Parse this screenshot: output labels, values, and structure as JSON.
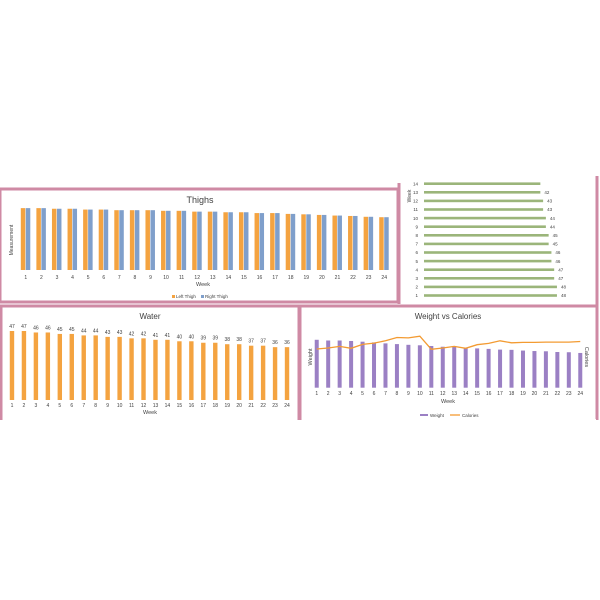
{
  "colors": {
    "border": "#cf8aa4",
    "orange": "#f4a340",
    "blue": "#7f9fcb",
    "green": "#9bb57a",
    "purple": "#9b80c4",
    "line": "#f39b32"
  },
  "chart_data": [
    {
      "type": "bar",
      "title": "Thighs",
      "xlabel": "Week",
      "ylabel": "Measurement",
      "categories": [
        "1",
        "2",
        "3",
        "4",
        "5",
        "6",
        "7",
        "8",
        "9",
        "10",
        "11",
        "12",
        "13",
        "14",
        "15",
        "16",
        "17",
        "18",
        "19",
        "20",
        "21",
        "22",
        "23",
        "24"
      ],
      "ylim": [
        0,
        32
      ],
      "legend": "bottom",
      "series": [
        {
          "name": "Left Thigh",
          "values": [
            30,
            30,
            29.7,
            29.7,
            29.3,
            29.3,
            29,
            29,
            29,
            28.7,
            28.7,
            28.3,
            28.3,
            28,
            28,
            27.6,
            27.6,
            27.2,
            27,
            26.7,
            26.4,
            26.2,
            25.8,
            25.6
          ]
        },
        {
          "name": "Right Thigh",
          "values": [
            30,
            30,
            29.7,
            29.7,
            29.3,
            29.3,
            29,
            29,
            29,
            28.7,
            28.7,
            28.3,
            28.3,
            28,
            28,
            27.6,
            27.6,
            27.2,
            27,
            26.7,
            26.4,
            26.2,
            25.8,
            25.6
          ]
        }
      ]
    },
    {
      "type": "bar",
      "orientation": "horizontal",
      "ylabel": "Week",
      "xlim": [
        0,
        50
      ],
      "categories": [
        "1",
        "2",
        "3",
        "4",
        "5",
        "6",
        "7",
        "8",
        "9",
        "10",
        "11",
        "12",
        "13",
        "14"
      ],
      "values": [
        48,
        48,
        47,
        47,
        46,
        46,
        45,
        45,
        44,
        44,
        43,
        43,
        42,
        42
      ],
      "data_labels": [
        "48",
        "48",
        "47",
        "47",
        "46",
        "46",
        "45",
        "45",
        "44",
        "44",
        "43",
        "43",
        "42",
        ""
      ]
    },
    {
      "type": "bar",
      "title": "Water",
      "xlabel": "Week",
      "ylim": [
        0,
        48
      ],
      "categories": [
        "1",
        "2",
        "3",
        "4",
        "5",
        "6",
        "7",
        "8",
        "9",
        "10",
        "11",
        "12",
        "13",
        "14",
        "15",
        "16",
        "17",
        "18",
        "19",
        "20",
        "21",
        "22",
        "23",
        "24"
      ],
      "values": [
        47,
        47,
        46,
        46,
        45,
        45,
        44,
        44,
        43,
        43,
        42,
        42,
        41,
        41,
        40,
        40,
        39,
        39,
        38,
        38,
        37,
        37,
        36,
        36
      ]
    },
    {
      "type": "bar+line",
      "title": "Weight vs Calories",
      "xlabel": "Week",
      "ylabel": "Weight",
      "y2label": "Calories",
      "categories": [
        "1",
        "2",
        "3",
        "4",
        "5",
        "6",
        "7",
        "8",
        "9",
        "10",
        "11",
        "12",
        "13",
        "14",
        "15",
        "16",
        "17",
        "18",
        "19",
        "20",
        "21",
        "22",
        "23",
        "24"
      ],
      "ylim": [
        0,
        250
      ],
      "y2lim": [
        0,
        2740
      ],
      "legend": "bottom",
      "series": [
        {
          "name": "Weight",
          "type": "bar",
          "values": [
            200,
            197,
            197,
            195,
            192,
            189,
            185,
            182,
            179,
            177,
            174,
            171,
            170,
            167,
            164,
            162,
            159,
            158,
            155,
            153,
            152,
            149,
            148,
            145
          ]
        },
        {
          "name": "Calories",
          "type": "line",
          "values": [
            1770,
            1815,
            1890,
            1800,
            1980,
            2040,
            2145,
            2295,
            2280,
            2355,
            1755,
            1815,
            1890,
            1800,
            1965,
            2025,
            2145,
            2055,
            2070,
            2070,
            2085,
            2085,
            2085,
            2115
          ]
        }
      ]
    }
  ]
}
